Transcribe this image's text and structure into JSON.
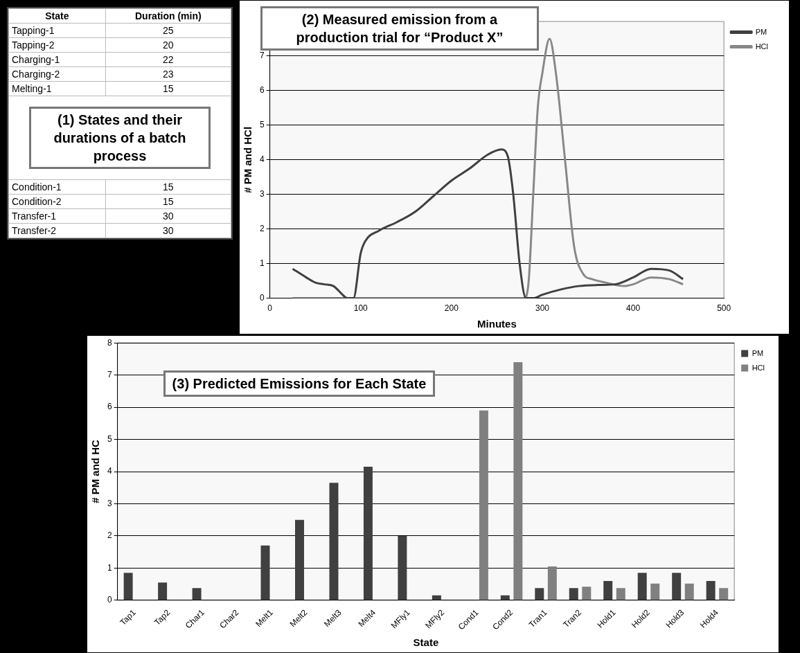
{
  "chart_data": [
    {
      "type": "other",
      "title": "(1) States and their durations of a batch process",
      "xlabel": "State",
      "ylabel": "Duration (min)",
      "categories": [
        "Tapping-1",
        "Tapping-2",
        "Charging-1",
        "Charging-2",
        "Melting-1",
        "Condition-1",
        "Condition-2",
        "Transfer-1",
        "Transfer-2"
      ],
      "values": [
        25,
        20,
        22,
        23,
        15,
        15,
        15,
        30,
        30
      ],
      "data_labels": true
    },
    {
      "type": "line",
      "title": "(2) Measured emission from a production trial for “Product X”",
      "xlabel": "Minutes",
      "ylabel": "# PM and HCl",
      "xlim": [
        0,
        500
      ],
      "xticks": [
        0,
        100,
        200,
        300,
        400,
        500
      ],
      "ylim": [
        0,
        8
      ],
      "yticks": [
        0,
        1,
        2,
        3,
        4,
        5,
        6,
        7
      ],
      "grid": "y",
      "legend": "top right",
      "series": [
        {
          "name": "PM",
          "color": "#404040",
          "x": [
            25,
            40,
            50,
            60,
            70,
            80,
            85,
            92,
            100,
            105,
            120,
            140,
            160,
            180,
            200,
            220,
            240,
            255,
            262,
            268,
            275,
            282,
            290,
            300,
            320,
            340,
            360,
            380,
            400,
            420,
            440,
            455
          ],
          "values": [
            0.85,
            0.6,
            0.45,
            0.4,
            0.35,
            0.1,
            0,
            0,
            1.3,
            1.65,
            1.95,
            2.2,
            2.5,
            2.95,
            3.4,
            3.75,
            4.15,
            4.3,
            4.1,
            3,
            1,
            0,
            0,
            0.1,
            0.25,
            0.35,
            0.38,
            0.4,
            0.6,
            0.85,
            0.8,
            0.55
          ]
        },
        {
          "name": "HCl",
          "color": "#888888",
          "x": [
            25,
            270,
            280,
            285,
            290,
            295,
            300,
            308,
            315,
            325,
            335,
            345,
            355,
            370,
            390,
            400,
            420,
            440,
            455
          ],
          "values": [
            0,
            0,
            0,
            0.5,
            3,
            5.5,
            6.5,
            7.5,
            6.5,
            4,
            1.5,
            0.7,
            0.55,
            0.45,
            0.35,
            0.4,
            0.6,
            0.55,
            0.4
          ]
        }
      ]
    },
    {
      "type": "bar",
      "title": "(3) Predicted Emissions for Each State",
      "xlabel": "State",
      "ylabel": "# PM and HC",
      "categories": [
        "Tap1",
        "Tap2",
        "Char1",
        "Char2",
        "Melt1",
        "Melt2",
        "Melt3",
        "Melt4",
        "MFly1",
        "MFly2",
        "Cond1",
        "Cond2",
        "Tran1",
        "Tran2",
        "Hold1",
        "Hold2",
        "Hold3",
        "Hold4"
      ],
      "ylim": [
        0,
        8
      ],
      "yticks": [
        0,
        1,
        2,
        3,
        4,
        5,
        6,
        7,
        8
      ],
      "grid": "y",
      "legend": "top right",
      "series": [
        {
          "name": "PM",
          "color": "#404040",
          "values": [
            0.85,
            0.55,
            0.38,
            0,
            1.7,
            2.5,
            3.65,
            4.15,
            2,
            0.15,
            0,
            0.15,
            0.38,
            0.38,
            0.6,
            0.85,
            0.85,
            0.6
          ]
        },
        {
          "name": "HCl",
          "color": "#808080",
          "values": [
            0,
            0,
            0,
            0,
            0,
            0,
            0,
            0,
            0,
            0,
            5.9,
            7.4,
            1.05,
            0.42,
            0.38,
            0.52,
            0.52,
            0.38
          ]
        }
      ]
    }
  ]
}
